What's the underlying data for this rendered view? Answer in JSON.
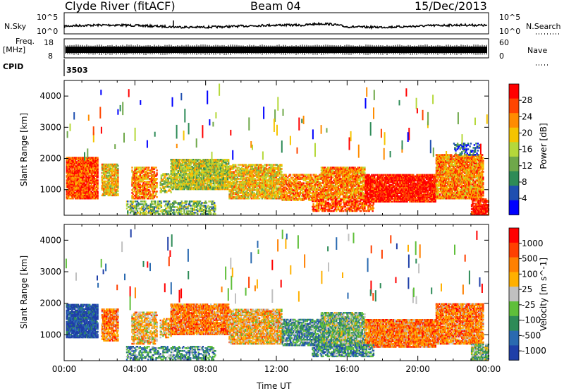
{
  "header": {
    "station": "Clyde River (fitACF)",
    "beam": "Beam 04",
    "date": "15/Dec/2013"
  },
  "strips": {
    "nsky_label": "N.Sky",
    "nsky_ticks": [
      "10^5",
      "10^0"
    ],
    "nsearch_label": "N.Search",
    "nsearch_ticks": [
      "10^5",
      "10^0"
    ],
    "freq_label": "Freq.",
    "freq_unit": "[MHz]",
    "freq_ticks": [
      "18",
      "8"
    ],
    "nave_label": "Nave",
    "nave_ticks": [
      "60",
      "0"
    ],
    "cpid_label": "CPID",
    "cpid_value": "3503"
  },
  "x_axis": {
    "label": "Time UT",
    "ticks": [
      "00:00",
      "04:00",
      "08:00",
      "12:00",
      "16:00",
      "20:00",
      "00:00"
    ]
  },
  "chart_data": [
    {
      "type": "heatmap",
      "ylabel": "Slant Range [km]",
      "yticks": [
        "4000",
        "3000",
        "2000",
        "1000"
      ],
      "colorbar_label": "Power [dB]",
      "colorbar_ticks": [
        "28",
        "24",
        "20",
        "16",
        "12",
        "8",
        "4"
      ],
      "ylim": [
        180,
        4500
      ],
      "xlim": [
        0,
        24
      ],
      "colors": [
        "#0000ff",
        "#1f4fb0",
        "#2e8b57",
        "#6fa84a",
        "#b5d83a",
        "#f5c400",
        "#ff8c00",
        "#ff4500",
        "#ff0000"
      ]
    },
    {
      "type": "heatmap",
      "ylabel": "Slant Range [km]",
      "yticks": [
        "4000",
        "3000",
        "2000",
        "1000"
      ],
      "colorbar_label": "Velocity [m s^-1]",
      "colorbar_ticks": [
        "1000",
        "500",
        "100",
        "25",
        "-25",
        "-100",
        "-500",
        "-1000"
      ],
      "ylim": [
        180,
        4500
      ],
      "xlim": [
        0,
        24
      ],
      "colors": [
        "#1f3fa8",
        "#2a6ab0",
        "#2e8b57",
        "#5fbf3a",
        "#c0c0c0",
        "#ffb000",
        "#ff8000",
        "#ff4000",
        "#ff0000"
      ]
    }
  ]
}
